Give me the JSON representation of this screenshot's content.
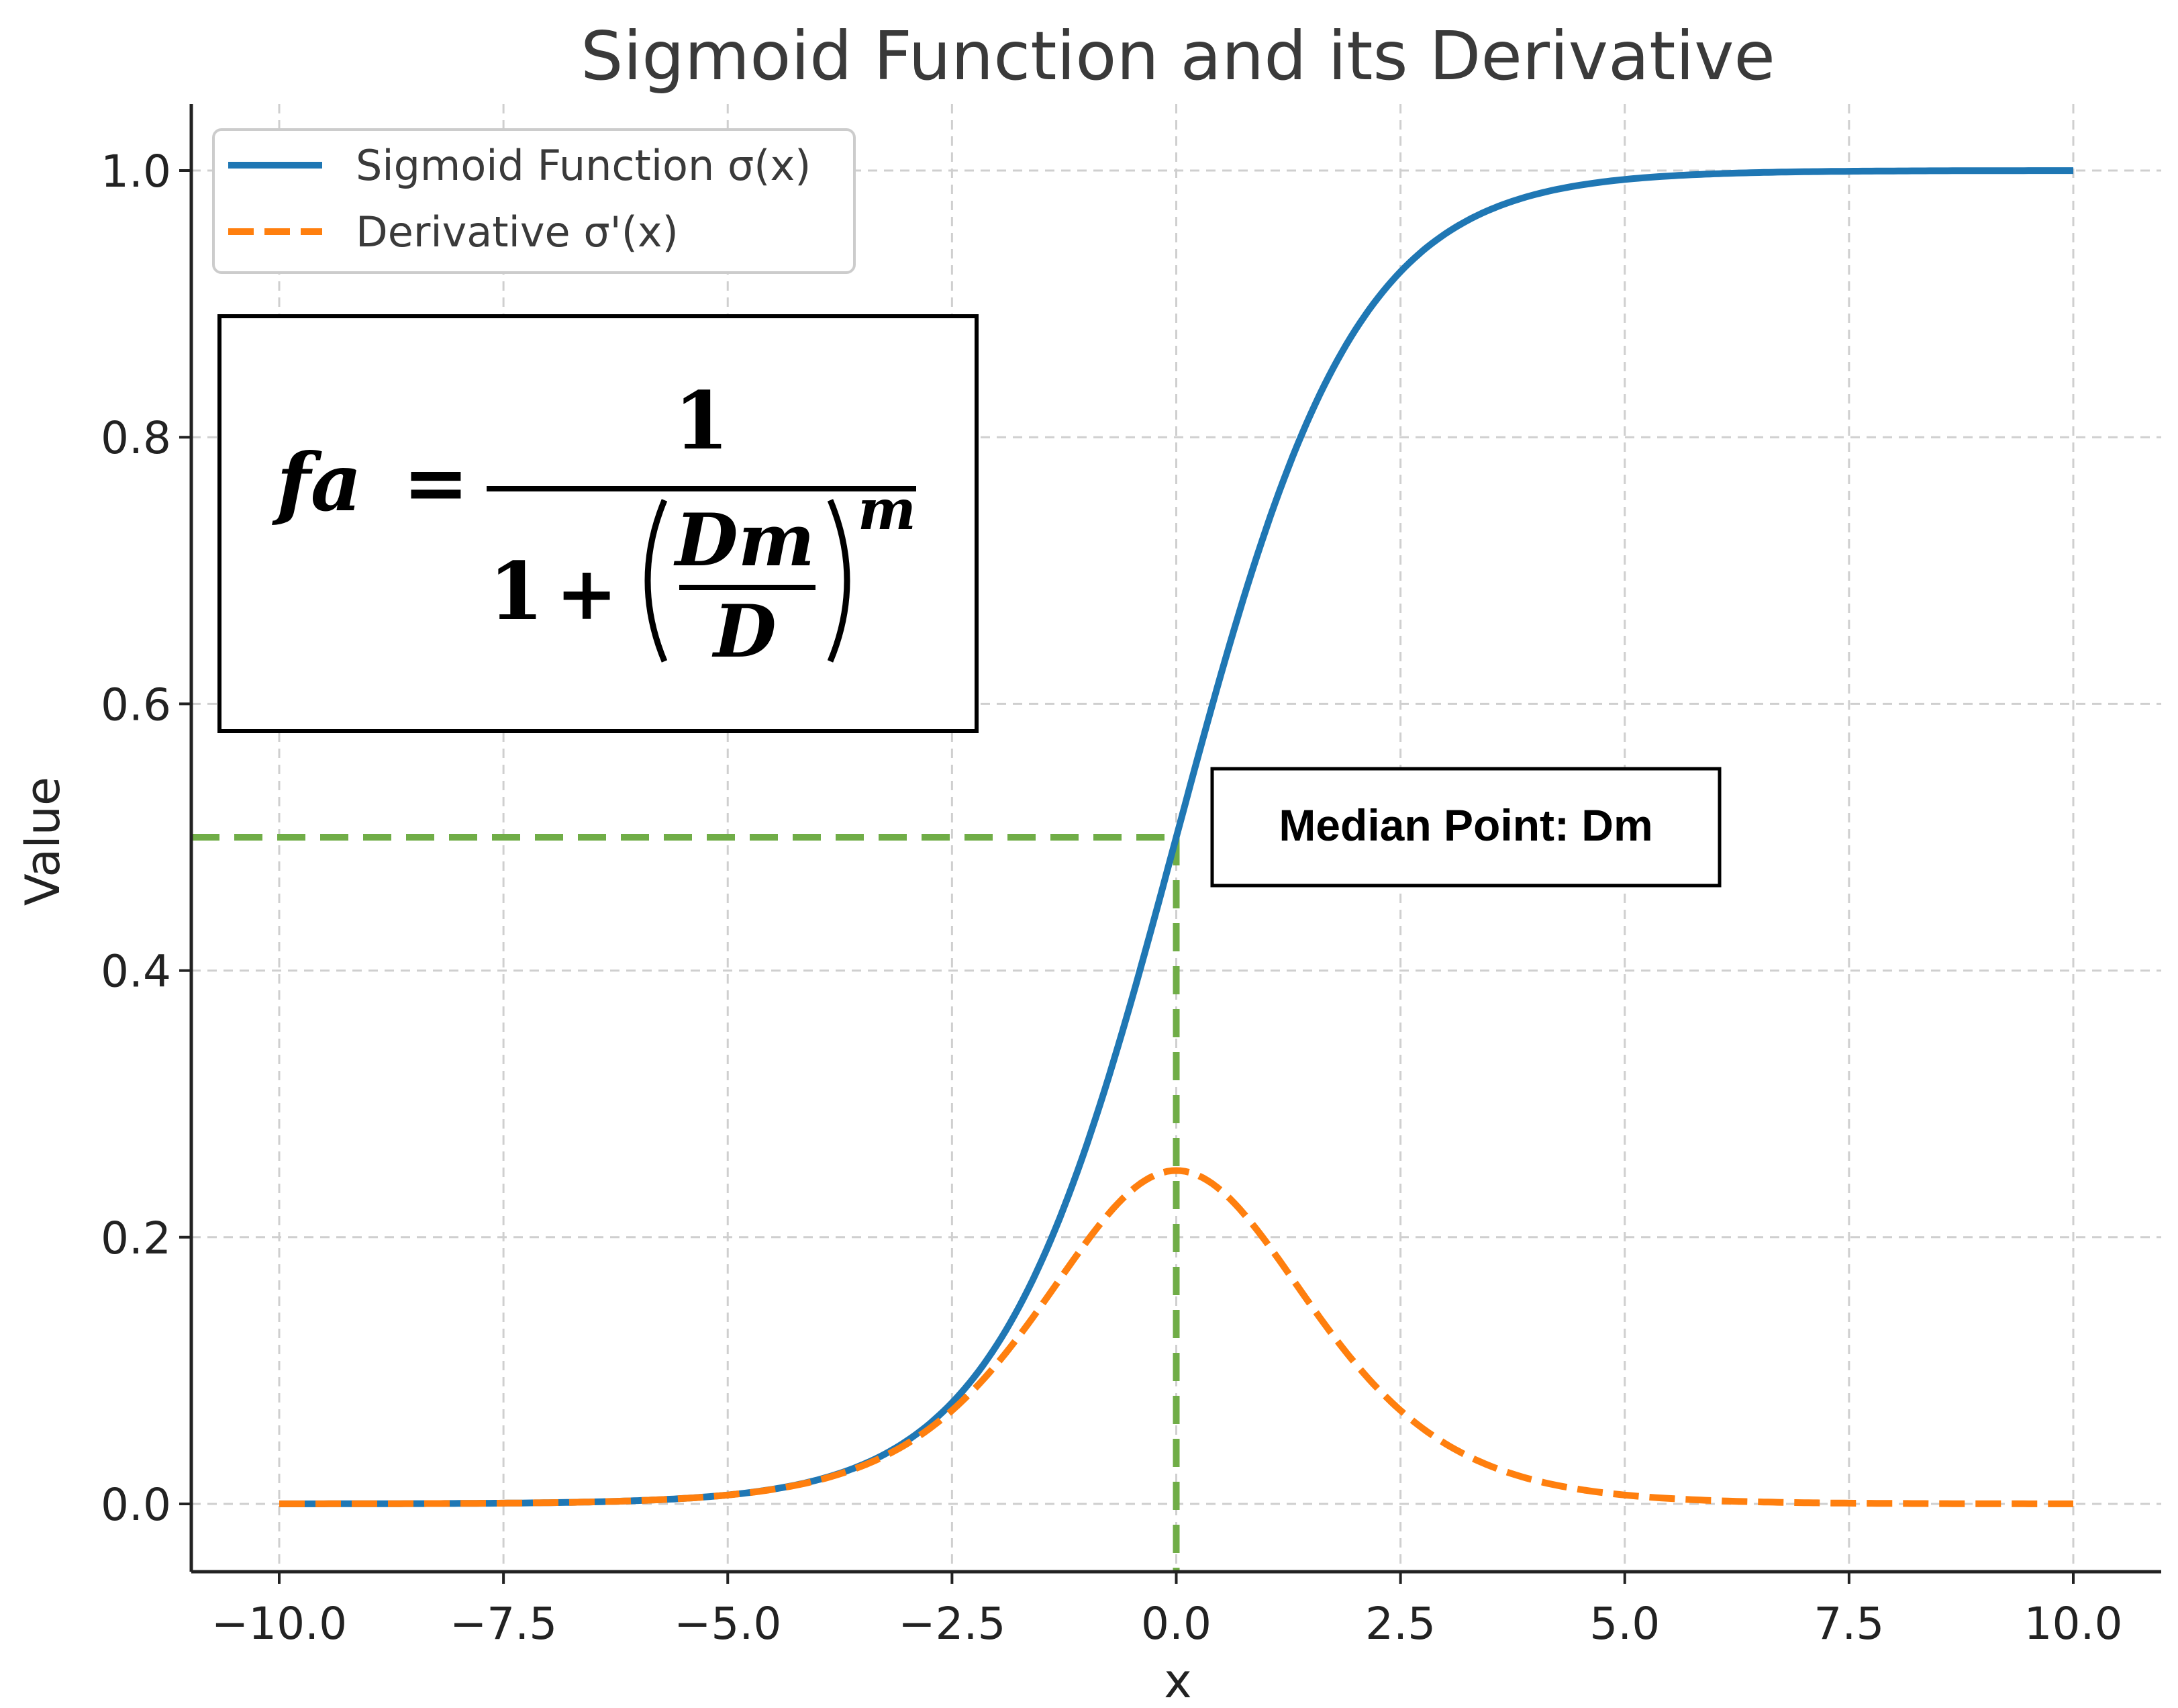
{
  "chart_data": {
    "type": "line",
    "title": "Sigmoid Function and its Derivative",
    "xlabel": "x",
    "ylabel": "Value",
    "xlim": [
      -11.0,
      11.0
    ],
    "ylim": [
      -0.05,
      1.05
    ],
    "xticks": [
      -10.0,
      -7.5,
      -5.0,
      -2.5,
      0.0,
      2.5,
      5.0,
      7.5,
      10.0
    ],
    "xtick_labels": [
      "−10.0",
      "−7.5",
      "−5.0",
      "−2.5",
      "0.0",
      "2.5",
      "5.0",
      "7.5",
      "10.0"
    ],
    "yticks": [
      0.0,
      0.2,
      0.4,
      0.6,
      0.8,
      1.0
    ],
    "ytick_labels": [
      "0.0",
      "0.2",
      "0.4",
      "0.6",
      "0.8",
      "1.0"
    ],
    "grid": true,
    "legend_position": "top-left",
    "x": [
      -10,
      -9,
      -8,
      -7,
      -6,
      -5,
      -4,
      -3,
      -2.5,
      -2,
      -1.5,
      -1,
      -0.5,
      0,
      0.5,
      1,
      1.5,
      2,
      2.5,
      3,
      4,
      5,
      6,
      7,
      8,
      9,
      10
    ],
    "series": [
      {
        "name": "Sigmoid Function σ(x)",
        "color": "#1f77b4",
        "style": "solid",
        "values": [
          5e-05,
          0.0001,
          0.0003,
          0.0009,
          0.0025,
          0.0067,
          0.018,
          0.047,
          0.076,
          0.119,
          0.182,
          0.269,
          0.378,
          0.5,
          0.622,
          0.731,
          0.818,
          0.881,
          0.924,
          0.953,
          0.982,
          0.993,
          0.9975,
          0.9991,
          0.9997,
          0.9999,
          0.99995
        ]
      },
      {
        "name": "Derivative σ'(x)",
        "color": "#ff7f0e",
        "style": "dashed",
        "values": [
          5e-05,
          0.0001,
          0.0003,
          0.0009,
          0.0025,
          0.0066,
          0.0177,
          0.0452,
          0.0701,
          0.105,
          0.149,
          0.197,
          0.235,
          0.25,
          0.235,
          0.197,
          0.149,
          0.105,
          0.0701,
          0.0452,
          0.0177,
          0.0066,
          0.0025,
          0.0009,
          0.0003,
          0.0001,
          5e-05
        ]
      }
    ],
    "annotations": {
      "median_label": "Median Point: Dm",
      "median_x": 0.0,
      "median_y": 0.5,
      "guide_color": "#70ad47"
    }
  },
  "formula": {
    "lhs": "fa",
    "equals": "=",
    "numerator": "1",
    "denominator_one": "1",
    "plus": "+",
    "frac_num": "Dm",
    "frac_den": "D",
    "exponent": "m"
  }
}
